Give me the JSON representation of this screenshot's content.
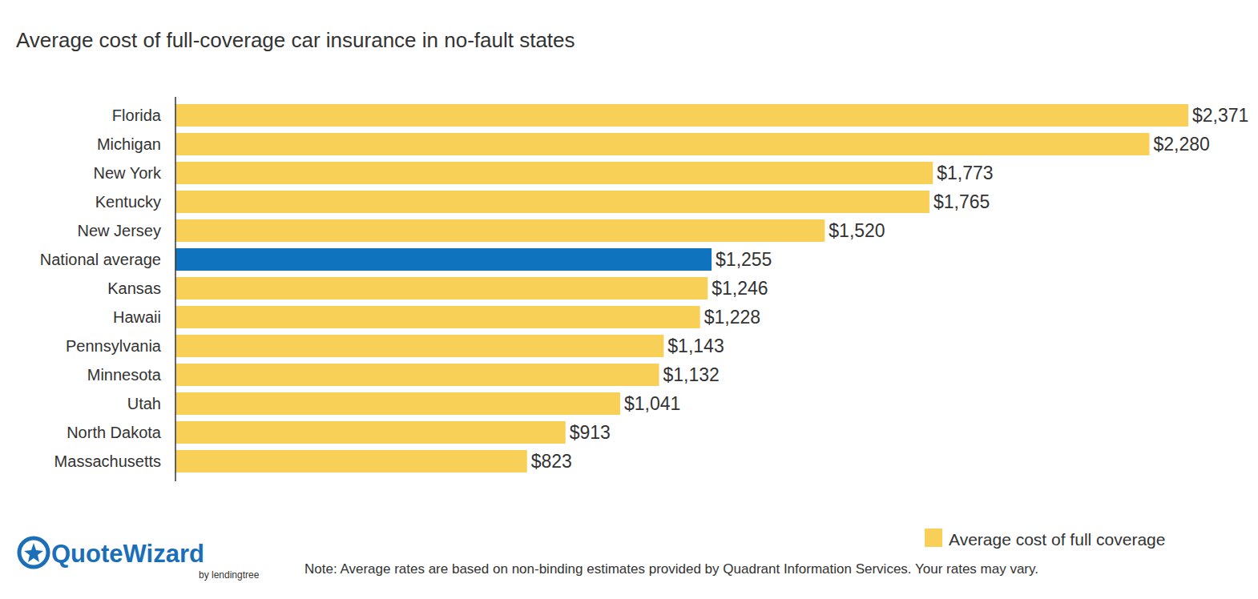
{
  "chart_data": {
    "type": "bar",
    "title": "Average cost of full-coverage car insurance in no-fault states",
    "orientation": "horizontal",
    "data_labels": true,
    "tick_labels": "y",
    "grid": false,
    "legend": "bottom-right",
    "categories": [
      "Florida",
      "Michigan",
      "New York",
      "Kentucky",
      "New Jersey",
      "National average",
      "Kansas",
      "Hawaii",
      "Pennsylvania",
      "Minnesota",
      "Utah",
      "North Dakota",
      "Massachusetts"
    ],
    "series": [
      {
        "name": "Average cost of full coverage",
        "color": "#f9d057",
        "colors": [
          "#f9d057",
          "#f9d057",
          "#f9d057",
          "#f9d057",
          "#f9d057",
          "#0f73be",
          "#f9d057",
          "#f9d057",
          "#f9d057",
          "#f9d057",
          "#f9d057",
          "#f9d057",
          "#f9d057"
        ],
        "values": [
          2371,
          2280,
          1773,
          1765,
          1520,
          1255,
          1246,
          1228,
          1143,
          1132,
          1041,
          913,
          823
        ],
        "value_labels": [
          "$2,371",
          "$2,280",
          "$1,773",
          "$1,765",
          "$1,520",
          "$1,255",
          "$1,246",
          "$1,228",
          "$1,143",
          "$1,132",
          "$1,041",
          "$913",
          "$823"
        ]
      }
    ],
    "note": "Note: Average rates are based on non-binding estimates provided by Quadrant Information Services. Your rates may vary.",
    "logo": {
      "name": "QuoteWizard",
      "byline": "by lendingtree"
    }
  }
}
